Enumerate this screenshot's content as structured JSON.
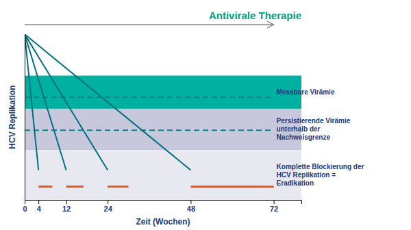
{
  "chart_data": {
    "type": "line",
    "title": "Antivirale Therapie",
    "title_color": "#00a080",
    "x_label": "Zeit (Wochen)",
    "y_label": "HCV Replikation",
    "text_color": "#1a3a7a",
    "xlim": [
      0,
      80
    ],
    "ylim": [
      0,
      100
    ],
    "xticks": [
      0,
      4,
      12,
      24,
      48,
      72
    ],
    "yticks": [],
    "tick_labels": "x",
    "grid": false,
    "bands": [
      {
        "from": 55,
        "to": 75,
        "color": "#00b0a0",
        "label": "Messbare Virämie"
      },
      {
        "from": 30,
        "to": 55,
        "color": "#c8c8dc",
        "label": "Persistierende Virämie\nunterhalb der\nNachweisgrenze"
      },
      {
        "from": 0,
        "to": 30,
        "color": "#e8e8f0",
        "label": "Komplette Blockierung der\nHCV Replikation =\nEradikation"
      }
    ],
    "reference_lines": [
      {
        "y": 62,
        "x": [
          0,
          72
        ],
        "color": "#008888",
        "line_style": "dashed"
      },
      {
        "y": 42,
        "x": [
          0,
          72
        ],
        "color": "#008888",
        "line_style": "dashed"
      }
    ],
    "series": [
      {
        "x": [
          0,
          4
        ],
        "values": [
          100,
          18
        ],
        "color": "#007080"
      },
      {
        "x": [
          0,
          12
        ],
        "values": [
          100,
          18
        ],
        "color": "#007080"
      },
      {
        "x": [
          0,
          24
        ],
        "values": [
          100,
          18
        ],
        "color": "#007080"
      },
      {
        "x": [
          0,
          48
        ],
        "values": [
          100,
          18
        ],
        "color": "#007080"
      }
    ],
    "segments": {
      "y": 8,
      "x": [
        [
          4,
          8
        ],
        [
          12,
          17
        ],
        [
          24,
          30
        ],
        [
          48,
          72
        ]
      ],
      "color": "#e05820"
    },
    "arrow": {
      "x": [
        0,
        72
      ]
    }
  }
}
